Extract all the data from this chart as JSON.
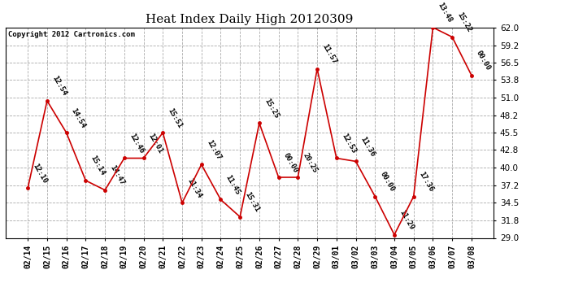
{
  "title": "Heat Index Daily High 20120309",
  "copyright": "Copyright 2012 Cartronics.com",
  "x_labels": [
    "02/14",
    "02/15",
    "02/16",
    "02/17",
    "02/18",
    "02/19",
    "02/20",
    "02/21",
    "02/22",
    "02/23",
    "02/24",
    "02/25",
    "02/26",
    "02/27",
    "02/28",
    "02/29",
    "03/01",
    "03/02",
    "03/03",
    "03/04",
    "03/05",
    "03/06",
    "03/07",
    "03/08"
  ],
  "y_values": [
    36.8,
    50.5,
    45.5,
    38.0,
    36.5,
    41.5,
    41.5,
    45.5,
    34.5,
    40.5,
    35.0,
    32.3,
    47.0,
    38.5,
    38.5,
    55.5,
    41.5,
    41.0,
    35.5,
    29.5,
    35.5,
    62.0,
    60.5,
    54.5
  ],
  "point_labels": [
    "12:10",
    "12:54",
    "14:54",
    "15:14",
    "14:47",
    "12:46",
    "12:01",
    "15:51",
    "11:34",
    "12:07",
    "11:45",
    "15:31",
    "15:25",
    "00:00",
    "20:25",
    "11:57",
    "12:53",
    "11:36",
    "00:00",
    "11:29",
    "17:36",
    "13:48",
    "15:22",
    "00:00"
  ],
  "ylim_min": 29.0,
  "ylim_max": 62.0,
  "yticks": [
    29.0,
    31.8,
    34.5,
    37.2,
    40.0,
    42.8,
    45.5,
    48.2,
    51.0,
    53.8,
    56.5,
    59.2,
    62.0
  ],
  "line_color": "#cc0000",
  "marker_color": "#cc0000",
  "bg_color": "#ffffff",
  "grid_color": "#aaaaaa",
  "title_fontsize": 11,
  "label_fontsize": 6.5,
  "copyright_fontsize": 6.5
}
